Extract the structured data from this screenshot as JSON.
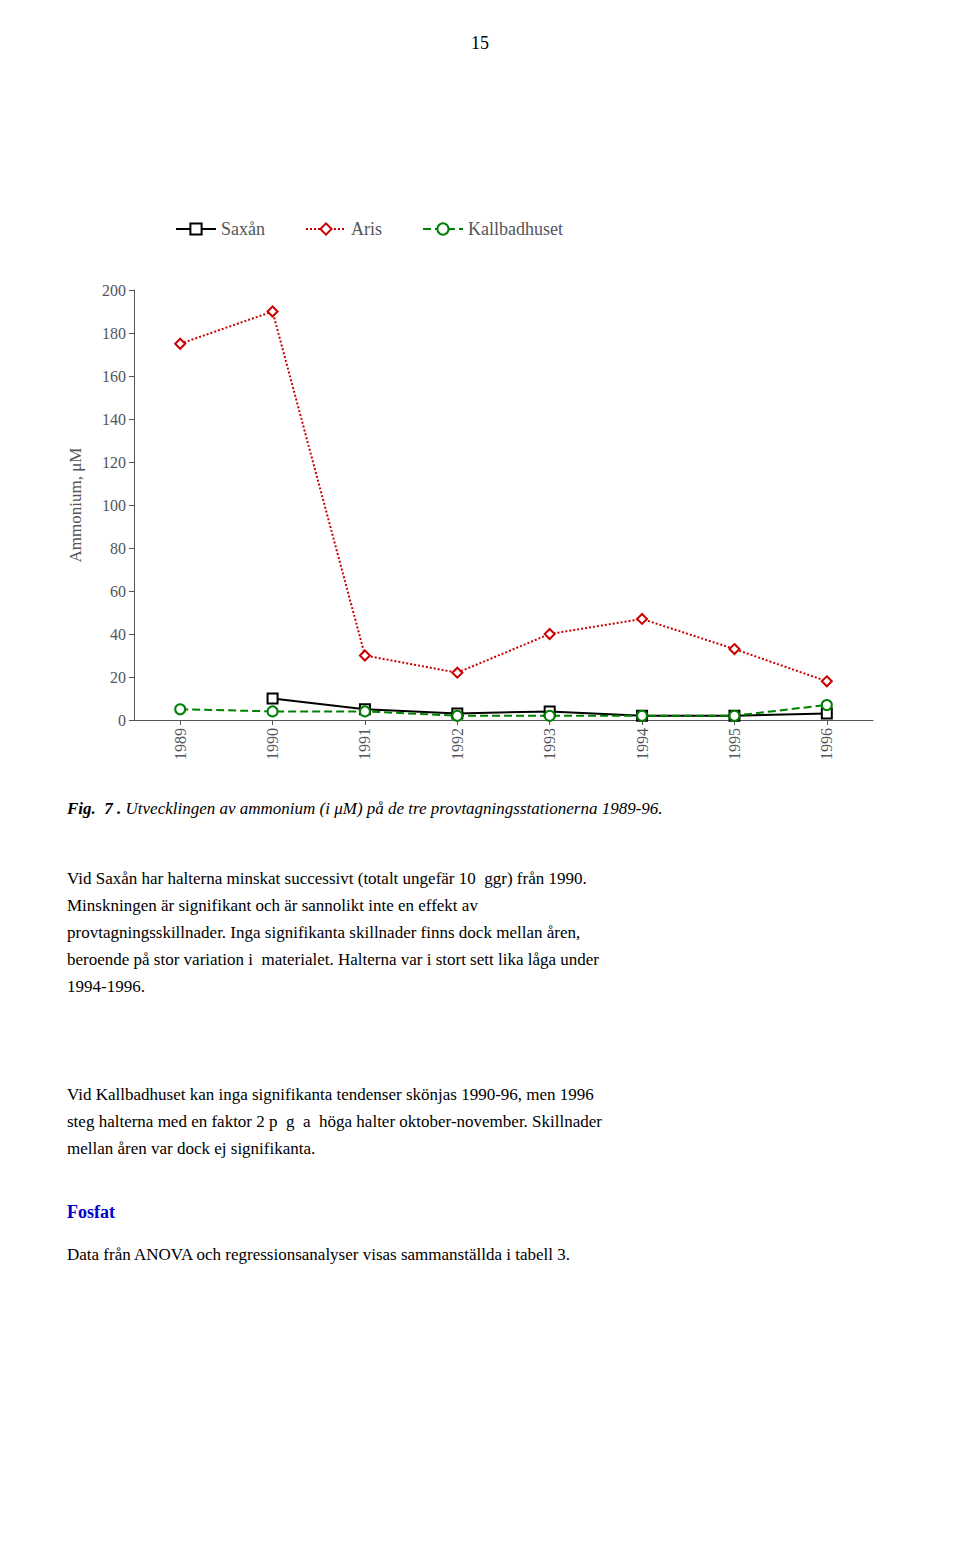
{
  "chart_data": {
    "type": "line",
    "x": [
      1989,
      1990,
      1991,
      1992,
      1993,
      1994,
      1995,
      1996
    ],
    "xlim": [
      1988.5,
      1996.5
    ],
    "xticks": [
      1989,
      1990,
      1991,
      1992,
      1993,
      1994,
      1995,
      1996
    ],
    "ylabel": "Ammonium, μM",
    "ylim": [
      0,
      200
    ],
    "yticks": [
      0,
      20,
      40,
      60,
      80,
      100,
      120,
      140,
      160,
      180,
      200
    ],
    "grid": false,
    "series": [
      {
        "name": "Saxån",
        "color": "#000000",
        "marker": "square",
        "line_style": "solid",
        "values": [
          null,
          10,
          5,
          3,
          4,
          2,
          2,
          3
        ]
      },
      {
        "name": "Aris",
        "color": "#cc0000",
        "marker": "diamond",
        "line_style": "dotted",
        "values": [
          175,
          190,
          30,
          22,
          40,
          47,
          33,
          18
        ]
      },
      {
        "name": "Kallbadhuset",
        "color": "#008000",
        "marker": "circle",
        "line_style": "dashed",
        "values": [
          5,
          4,
          4,
          2,
          2,
          2,
          2,
          7
        ]
      }
    ],
    "page_number": "15",
    "caption": [
      "Fig.  7 .",
      " Utvecklingen av ammonium (i μM) på de tre provtagningsstationerna 1989-96."
    ],
    "body": [
      [
        "Vid Saxån har halterna minskat successivt (totalt ungefär 10  ggr) från 1990.",
        "Minskningen är signifikant och är sannolikt inte en effekt av",
        "provtagningsskillnader. Inga signifikanta skillnader finns dock mellan åren,",
        "beroende på stor variation i  materialet. Halterna var i stort sett lika låga under",
        "1994-1996."
      ],
      [
        "Vid Kallbadhuset kan inga signifikanta tendenser skönjas 1990-96, men 1996",
        "steg halterna med en faktor 2 p  g  a  höga halter oktober-november. Skillnader",
        "mellan åren var dock ej signifikanta."
      ]
    ],
    "section_header": "Fosfat",
    "header_color": "#0000cc",
    "section_text": "Data från ANOVA och regressionsanalyser visas sammanställda i tabell 3."
  }
}
